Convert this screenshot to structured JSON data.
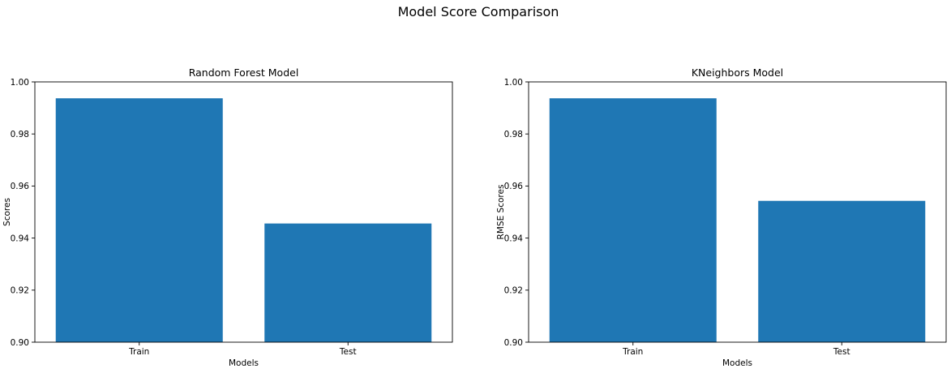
{
  "figure": {
    "title": "Model Score Comparison"
  },
  "chart_data": [
    {
      "type": "bar",
      "title": "Random Forest Model",
      "xlabel": "Models",
      "ylabel": "Scores",
      "categories": [
        "Train",
        "Test"
      ],
      "values": [
        0.9937,
        0.9456
      ],
      "ylim": [
        0.9,
        1.0
      ],
      "yticks": [
        "0.90",
        "0.92",
        "0.94",
        "0.96",
        "0.98",
        "1.00"
      ],
      "bar_color": "#1f77b4",
      "grid": false,
      "legend": "none"
    },
    {
      "type": "bar",
      "title": "KNeighbors Model",
      "xlabel": "Models",
      "ylabel": "RMSE Scores",
      "categories": [
        "Train",
        "Test"
      ],
      "values": [
        0.9937,
        0.9543
      ],
      "ylim": [
        0.9,
        1.0
      ],
      "yticks": [
        "0.90",
        "0.92",
        "0.94",
        "0.96",
        "0.98",
        "1.00"
      ],
      "bar_color": "#1f77b4",
      "grid": false,
      "legend": "none"
    }
  ]
}
